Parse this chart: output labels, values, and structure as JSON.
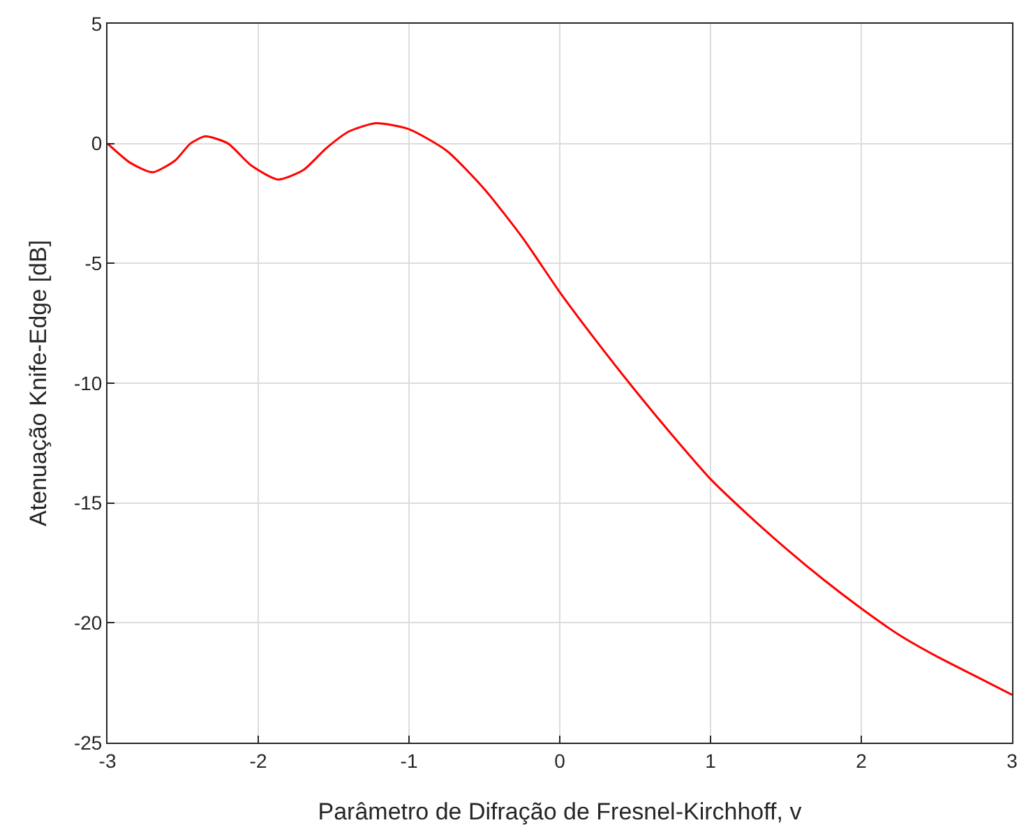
{
  "chart_data": {
    "type": "line",
    "xlabel": "Parâmetro de Difração de Fresnel-Kirchhoff, v",
    "ylabel": "Atenuação Knife-Edge [dB]",
    "x": [
      -3,
      -2.85,
      -2.7,
      -2.55,
      -2.45,
      -2.35,
      -2.2,
      -2.05,
      -1.87,
      -1.7,
      -1.55,
      -1.4,
      -1.22,
      -1.0,
      -0.75,
      -0.5,
      -0.25,
      0,
      0.25,
      0.5,
      0.75,
      1,
      1.25,
      1.5,
      1.75,
      2,
      2.25,
      2.5,
      2.75,
      3
    ],
    "series": [
      {
        "color": "#ff0000",
        "values": [
          0,
          -0.8,
          -1.2,
          -0.7,
          0.0,
          0.3,
          0.0,
          -0.9,
          -1.5,
          -1.1,
          -0.2,
          0.5,
          0.85,
          0.6,
          -0.3,
          -1.9,
          -3.9,
          -6.2,
          -8.3,
          -10.3,
          -12.2,
          -14.0,
          -15.5,
          -16.9,
          -18.2,
          -19.4,
          -20.5,
          -21.4,
          -22.2,
          -23.0
        ]
      }
    ],
    "xlim": [
      -3,
      3
    ],
    "xticks": [
      -3,
      -2,
      -1,
      0,
      1,
      2,
      3
    ],
    "ylim": [
      -25,
      5
    ],
    "yticks": [
      -25,
      -20,
      -15,
      -10,
      -5,
      0,
      5
    ],
    "grid": true,
    "marker": "none",
    "line_style": "solid"
  }
}
